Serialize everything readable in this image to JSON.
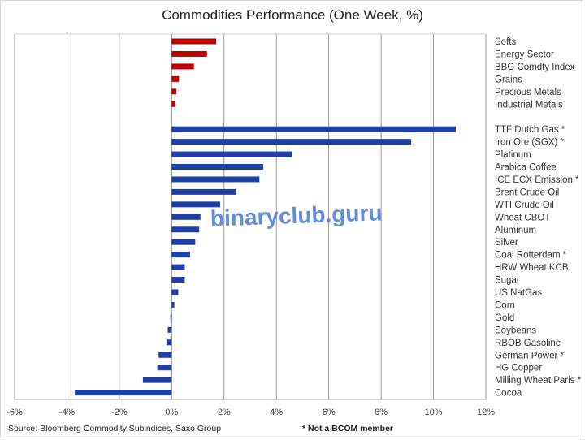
{
  "chart_data": {
    "type": "bar",
    "orientation": "horizontal",
    "title": "Commodities Performance (One Week, %)",
    "xlim": [
      -6,
      12
    ],
    "xticks": [
      -6,
      -4,
      -2,
      0,
      2,
      4,
      6,
      8,
      10,
      12
    ],
    "xtick_labels": [
      "-6%",
      "-4%",
      "-2%",
      "0%",
      "2%",
      "4%",
      "6%",
      "8%",
      "10%",
      "12%"
    ],
    "grid": "vertical",
    "colors": {
      "sector": "#c00000",
      "commodity": "#1f3fa8"
    },
    "groups": [
      {
        "name": "sectors",
        "color_key": "sector",
        "categories": [
          "Softs",
          "Energy Sector",
          "BBG Comdty Index",
          "Grains",
          "Precious Metals",
          "Industrial Metals"
        ],
        "values": [
          1.7,
          1.35,
          0.85,
          0.28,
          0.18,
          0.15
        ]
      },
      {
        "name": "commodities",
        "color_key": "commodity",
        "categories": [
          "TTF Dutch Gas *",
          "Iron Ore (SGX) *",
          "Platinum",
          "Arabica Coffee",
          "ICE ECX Emission *",
          "Brent Crude Oil",
          "WTI Crude Oil",
          "Wheat CBOT",
          "Aluminum",
          "Silver",
          "Coal Rotterdam *",
          "HRW Wheat KCB",
          "Sugar",
          "US NatGas",
          "Corn",
          "Gold",
          "Soybeans",
          "RBOB Gasoline",
          "German Power *",
          "HG Copper",
          "Milling Wheat Paris *",
          "Cocoa"
        ],
        "values": [
          10.85,
          9.15,
          4.6,
          3.5,
          3.35,
          2.45,
          1.85,
          1.1,
          1.05,
          0.9,
          0.7,
          0.5,
          0.5,
          0.25,
          0.1,
          -0.05,
          -0.15,
          -0.2,
          -0.5,
          -0.55,
          -1.1,
          -3.7
        ]
      }
    ]
  },
  "source": "Source: Bloomberg Commodity Subindices, Saxo Group",
  "footnote": "* Not a BCOM member",
  "watermark": "binaryclub.guru"
}
